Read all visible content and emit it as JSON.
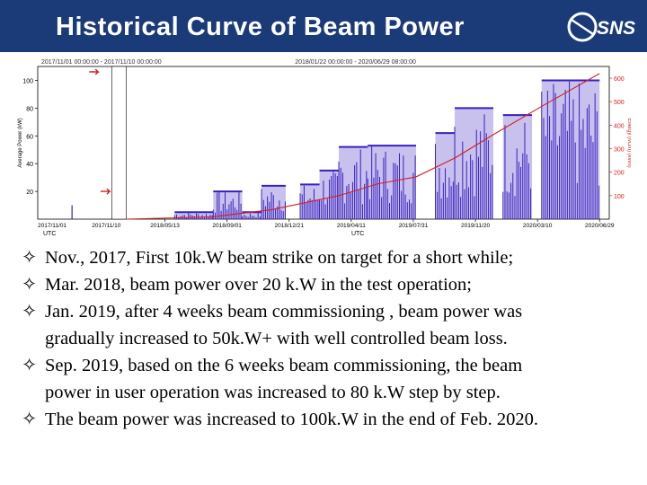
{
  "slide": {
    "title": "Historical Curve of Beam Power",
    "logo_text": "SNS",
    "bullet_icon": "four-point-star-icon",
    "bullet_symbol": "✧",
    "bullets": [
      {
        "lines": [
          "Nov., 2017, First 10k.W beam strike on target for a short while;"
        ]
      },
      {
        "lines": [
          "Mar. 2018, beam power over 20 k.W in the test operation;"
        ]
      },
      {
        "lines": [
          "Jan. 2019, after 4 weeks beam commissioning , beam power was",
          "gradually increased to 50k.W+ with well controlled beam loss."
        ]
      },
      {
        "lines": [
          "Sep. 2019, based on the 6 weeks beam commissioning,  the beam",
          "power in user operation was increased to 80 k.W step by step."
        ]
      },
      {
        "lines": [
          "The beam power was increased to 100k.W in the end of Feb. 2020."
        ]
      }
    ],
    "colors": {
      "title_bar": "#1a3a78",
      "beam_series": "#3a1fc0",
      "energy_series": "#d42020"
    }
  },
  "chart_data": {
    "type": "area",
    "panels": [
      {
        "range_label": "2017/11/01 00:00:00 - 2017/11/10 00:00:00",
        "x_ticks": [
          "2017/11/01",
          "2017/11/10"
        ],
        "x_name": "UTC"
      },
      {
        "range_label": "2018/01/22 00:00:00 - 2020/06/29 08:00:00",
        "x_ticks": [
          "2018/05/13",
          "2018/09/01",
          "2018/12/21",
          "2019/04/11",
          "2019/07/31",
          "2019/11/20",
          "2020/03/10",
          "2020/06/29"
        ],
        "x_name": "UTC"
      }
    ],
    "ylabel": "Average Power (kW)",
    "y_ticks": [
      20,
      40,
      60,
      80,
      100
    ],
    "ylim": [
      0,
      110
    ],
    "y2label": "Energy (MJ/h) (kWh)",
    "y2_ticks": [
      100,
      200,
      300,
      400,
      500,
      600
    ],
    "y2lim": [
      0,
      650
    ],
    "series": [
      {
        "kind": "beam_power",
        "segments": [
          {
            "x0": 0.0,
            "x1": 0.1,
            "y": 0
          },
          {
            "x0": 0.1,
            "x1": 0.18,
            "y": 5
          },
          {
            "x0": 0.18,
            "x1": 0.24,
            "y": 20
          },
          {
            "x0": 0.24,
            "x1": 0.28,
            "y": 5
          },
          {
            "x0": 0.28,
            "x1": 0.33,
            "y": 24
          },
          {
            "x0": 0.36,
            "x1": 0.4,
            "y": 25
          },
          {
            "x0": 0.4,
            "x1": 0.44,
            "y": 35
          },
          {
            "x0": 0.44,
            "x1": 0.5,
            "y": 52
          },
          {
            "x0": 0.5,
            "x1": 0.6,
            "y": 53
          },
          {
            "x0": 0.64,
            "x1": 0.68,
            "y": 62
          },
          {
            "x0": 0.68,
            "x1": 0.76,
            "y": 80
          },
          {
            "x0": 0.78,
            "x1": 0.84,
            "y": 75
          },
          {
            "x0": 0.86,
            "x1": 0.98,
            "y": 100
          }
        ]
      },
      {
        "kind": "cumulative_energy",
        "x": [
          0.0,
          0.18,
          0.3,
          0.44,
          0.52,
          0.6,
          0.68,
          0.76,
          0.86,
          0.98
        ],
        "y": [
          0,
          10,
          40,
          100,
          150,
          180,
          260,
          360,
          480,
          620
        ]
      }
    ]
  }
}
